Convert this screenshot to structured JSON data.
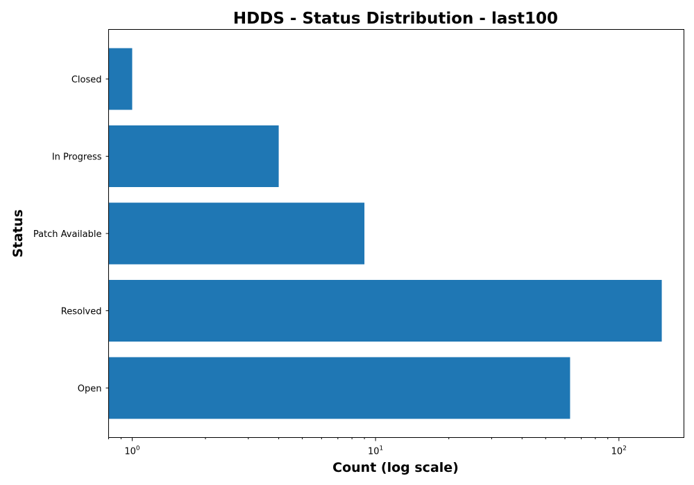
{
  "chart_data": {
    "type": "bar",
    "orientation": "horizontal",
    "title": "HDDS - Status Distribution - last100",
    "xlabel": "Count (log scale)",
    "ylabel": "Status",
    "x_scale": "log",
    "xlim": [
      0.8,
      185
    ],
    "categories": [
      "Open",
      "Resolved",
      "Patch Available",
      "In Progress",
      "Closed"
    ],
    "values": [
      63,
      150,
      9,
      4,
      1
    ],
    "x_ticks": [
      {
        "base": "10",
        "exp": "0",
        "value": 1
      },
      {
        "base": "10",
        "exp": "1",
        "value": 10
      },
      {
        "base": "10",
        "exp": "2",
        "value": 100
      }
    ],
    "bar_color": "#1f77b4",
    "grid": false,
    "legend": "none"
  }
}
